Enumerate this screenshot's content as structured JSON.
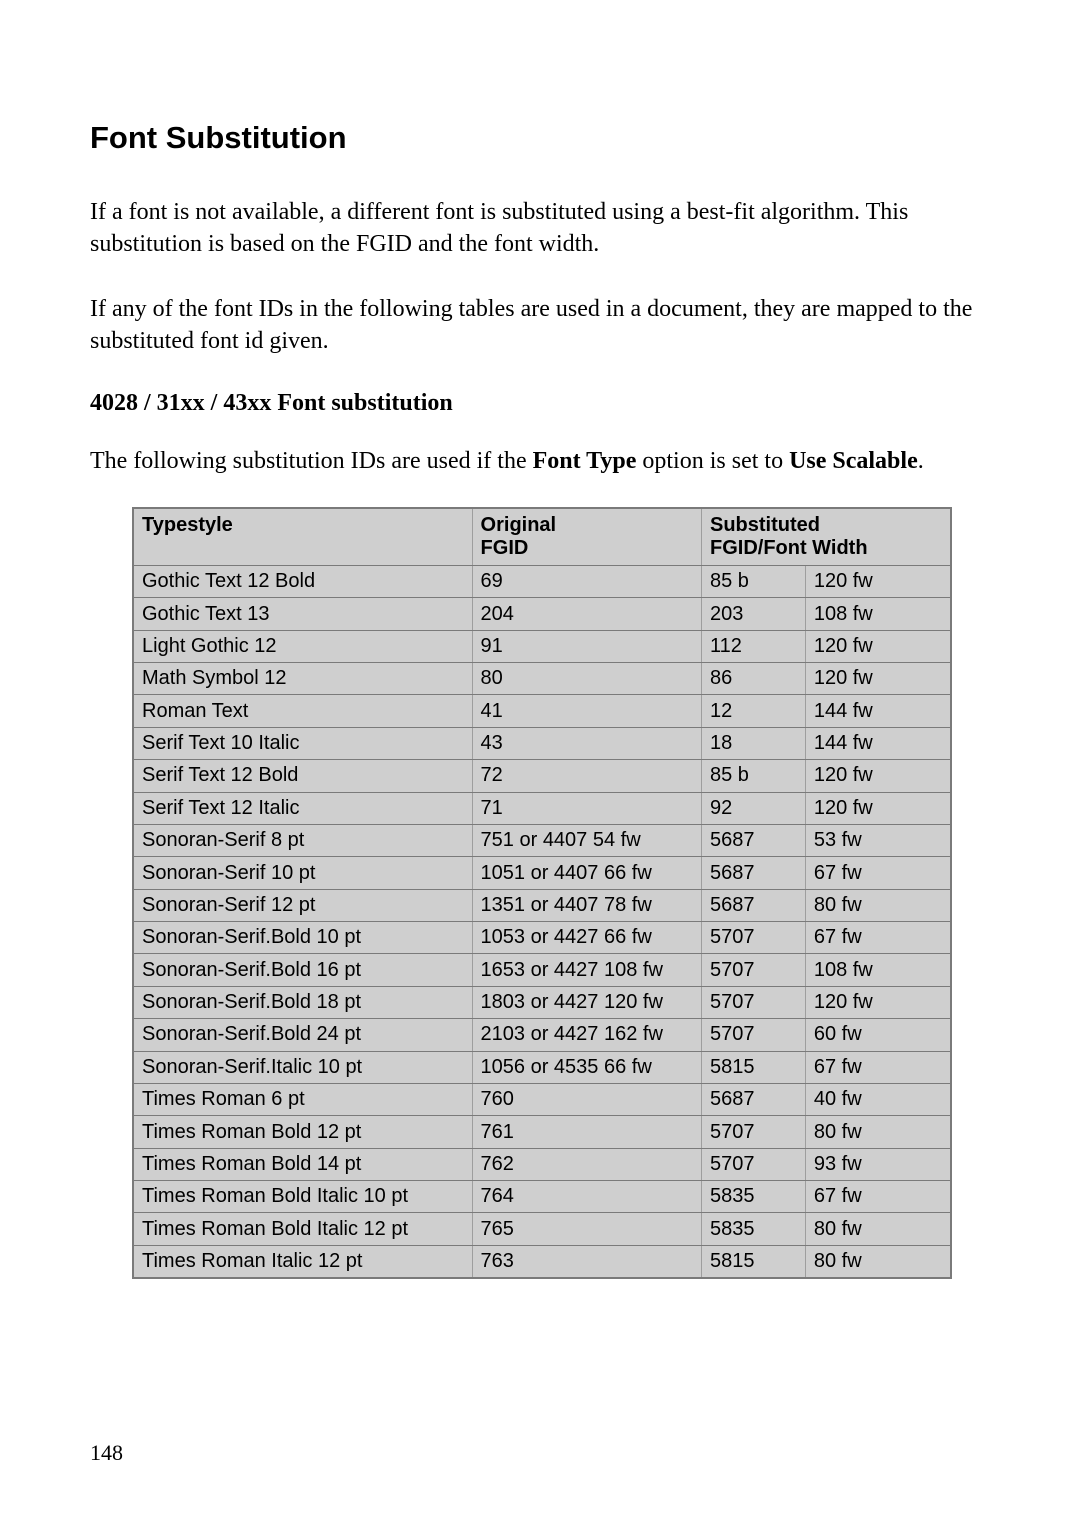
{
  "title": "Font Substitution",
  "para1": "If a font is not available, a different font is substituted using a best-fit algorithm. This substitution is based on the FGID and the font width.",
  "para2": "If any of the font IDs in the following tables are used in a document, they are mapped to the substituted font id given.",
  "subtitle": "4028 / 31xx / 43xx Font substitution",
  "lead_prefix": "The following substitution IDs are used if the ",
  "lead_bold1": "Font Type",
  "lead_mid": " option is set to ",
  "lead_bold2": "Use Scalable",
  "lead_suffix": ".",
  "table": {
    "columns": {
      "c1": "Typestyle",
      "c2a": "Original",
      "c2b": "FGID",
      "c3a": "Substituted",
      "c3b": "FGID/Font Width"
    },
    "rows": [
      {
        "t": "Gothic Text 12 Bold",
        "o": "69",
        "s1": "85 b",
        "s2": "120 fw"
      },
      {
        "t": "Gothic Text 13",
        "o": "204",
        "s1": "203",
        "s2": "108 fw"
      },
      {
        "t": "Light Gothic 12",
        "o": "91",
        "s1": "112",
        "s2": "120 fw"
      },
      {
        "t": "Math Symbol 12",
        "o": "80",
        "s1": "86",
        "s2": "120 fw"
      },
      {
        "t": "Roman Text",
        "o": "41",
        "s1": "12",
        "s2": "144 fw"
      },
      {
        "t": "Serif Text 10 Italic",
        "o": "43",
        "s1": "18",
        "s2": "144 fw"
      },
      {
        "t": "Serif Text 12 Bold",
        "o": "72",
        "s1": "85 b",
        "s2": "120 fw"
      },
      {
        "t": "Serif Text 12 Italic",
        "o": "71",
        "s1": "92",
        "s2": "120 fw"
      },
      {
        "t": "Sonoran-Serif 8 pt",
        "o": "751 or 4407 54 fw",
        "s1": "5687",
        "s2": "53 fw"
      },
      {
        "t": "Sonoran-Serif 10 pt",
        "o": "1051 or 4407 66 fw",
        "s1": "5687",
        "s2": "67 fw"
      },
      {
        "t": "Sonoran-Serif 12 pt",
        "o": "1351 or 4407 78 fw",
        "s1": "5687",
        "s2": "80 fw"
      },
      {
        "t": "Sonoran-Serif.Bold 10 pt",
        "o": "1053 or 4427 66 fw",
        "s1": "5707",
        "s2": "67 fw"
      },
      {
        "t": "Sonoran-Serif.Bold 16 pt",
        "o": "1653 or 4427 108 fw",
        "s1": "5707",
        "s2": "108 fw"
      },
      {
        "t": "Sonoran-Serif.Bold 18 pt",
        "o": "1803 or 4427 120 fw",
        "s1": "5707",
        "s2": "120 fw"
      },
      {
        "t": "Sonoran-Serif.Bold 24 pt",
        "o": "2103 or 4427 162 fw",
        "s1": "5707",
        "s2": "60 fw"
      },
      {
        "t": "Sonoran-Serif.Italic 10 pt",
        "o": "1056 or 4535 66 fw",
        "s1": "5815",
        "s2": "67 fw"
      },
      {
        "t": "Times Roman 6 pt",
        "o": "760",
        "s1": "5687",
        "s2": "40 fw"
      },
      {
        "t": "Times Roman Bold 12 pt",
        "o": "761",
        "s1": "5707",
        "s2": "80 fw"
      },
      {
        "t": "Times Roman Bold 14 pt",
        "o": "762",
        "s1": "5707",
        "s2": "93 fw"
      },
      {
        "t": "Times Roman Bold Italic 10 pt",
        "o": "764",
        "s1": "5835",
        "s2": "67 fw"
      },
      {
        "t": "Times Roman Bold Italic 12 pt",
        "o": "765",
        "s1": "5835",
        "s2": "80 fw"
      },
      {
        "t": "Times Roman Italic 12 pt",
        "o": "763",
        "s1": "5815",
        "s2": "80 fw"
      }
    ]
  },
  "page_number": "148"
}
